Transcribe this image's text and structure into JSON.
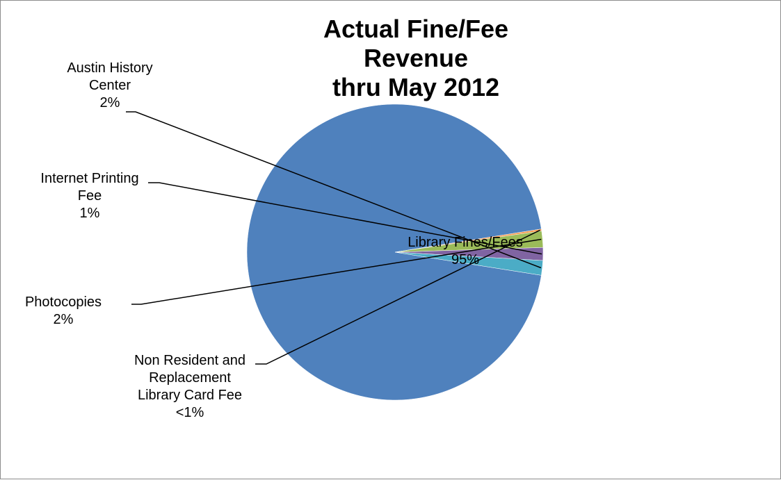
{
  "chart_data": {
    "type": "pie",
    "title": "Actual Fine/Fee\nRevenue\nthru May 2012",
    "legend": "none",
    "slices": [
      {
        "name": "Library Fines/Fees",
        "value": 95,
        "label": "Library Fines/Fees\n95%",
        "color": "#4f81bd"
      },
      {
        "name": "Non Resident and Replacement Library Card Fee",
        "value": 0.2,
        "label": "Non Resident and\nReplacement\nLibrary Card Fee\n<1%",
        "color": "#f79646"
      },
      {
        "name": "Photocopies",
        "value": 1.8,
        "label": "Photocopies\n2%",
        "color": "#9bbb59"
      },
      {
        "name": "Internet Printing Fee",
        "value": 1.4,
        "label": "Internet Printing\nFee\n1%",
        "color": "#8064a2"
      },
      {
        "name": "Austin History Center",
        "value": 1.6,
        "label": "Austin History\nCenter\n2%",
        "color": "#4bacc6"
      }
    ]
  }
}
